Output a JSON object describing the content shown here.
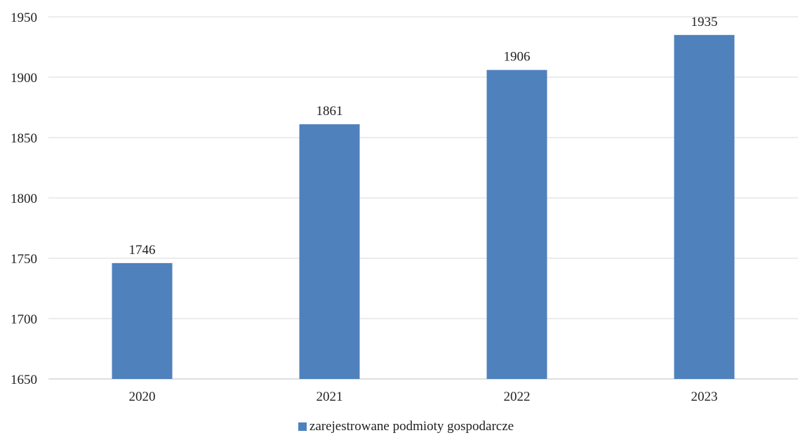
{
  "chart_data": {
    "type": "bar",
    "categories": [
      "2020",
      "2021",
      "2022",
      "2023"
    ],
    "series": [
      {
        "name": "zarejestrowane podmioty gospodarcze",
        "values": [
          1746,
          1861,
          1906,
          1935
        ],
        "color": "#4F81BD"
      }
    ],
    "data_labels": [
      "1746",
      "1861",
      "1906",
      "1935"
    ],
    "y_ticks": [
      "1650",
      "1700",
      "1750",
      "1800",
      "1850",
      "1900",
      "1950"
    ],
    "ylim": [
      1650,
      1950
    ],
    "grid": true,
    "grid_color": "#D9D9D9",
    "legend_position": "bottom"
  }
}
